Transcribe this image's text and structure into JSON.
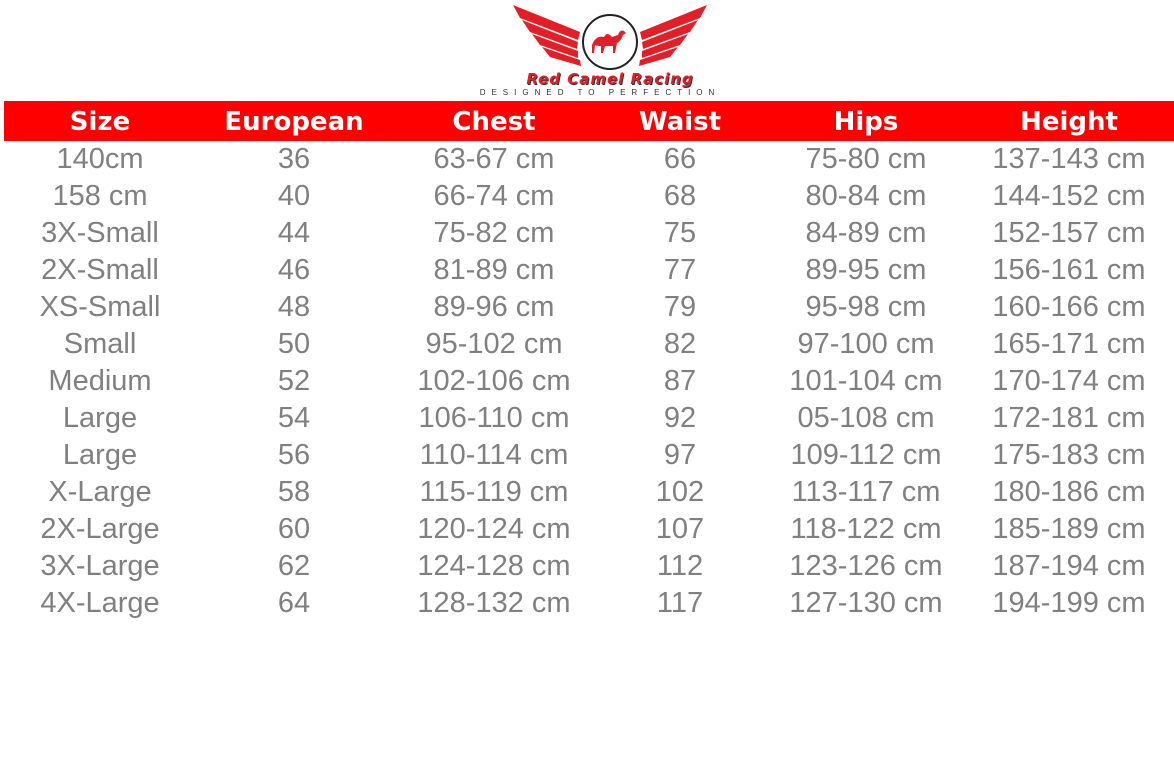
{
  "brand": {
    "name": "Red Camel Racing",
    "tagline": "Designed to Perfection",
    "colors": {
      "accent": "#ff0000",
      "logo_red": "#e41e26",
      "text_gray": "#808080"
    }
  },
  "table": {
    "headers": [
      "Size",
      "European",
      "Chest",
      "Waist",
      "Hips",
      "Height"
    ],
    "rows": [
      [
        "140cm",
        "36",
        "63-67 cm",
        "66",
        "75-80 cm",
        "137-143 cm"
      ],
      [
        "158 cm",
        "40",
        "66-74 cm",
        "68",
        "80-84 cm",
        "144-152 cm"
      ],
      [
        "3X-Small",
        "44",
        "75-82 cm",
        "75",
        "84-89 cm",
        "152-157 cm"
      ],
      [
        "2X-Small",
        "46",
        "81-89 cm",
        "77",
        "89-95 cm",
        "156-161 cm"
      ],
      [
        "XS-Small",
        "48",
        "89-96 cm",
        "79",
        "95-98 cm",
        "160-166 cm"
      ],
      [
        "Small",
        "50",
        "95-102 cm",
        "82",
        "97-100 cm",
        "165-171 cm"
      ],
      [
        "Medium",
        "52",
        "102-106 cm",
        "87",
        "101-104 cm",
        "170-174 cm"
      ],
      [
        "Large",
        "54",
        "106-110 cm",
        "92",
        "05-108 cm",
        "172-181 cm"
      ],
      [
        "Large",
        "56",
        "110-114 cm",
        "97",
        "109-112 cm",
        "175-183 cm"
      ],
      [
        "X-Large",
        "58",
        "115-119 cm",
        "102",
        "113-117 cm",
        "180-186 cm"
      ],
      [
        "2X-Large",
        "60",
        "120-124 cm",
        "107",
        "118-122 cm",
        "185-189 cm"
      ],
      [
        "3X-Large",
        "62",
        "124-128 cm",
        "112",
        "123-126 cm",
        "187-194 cm"
      ],
      [
        "4X-Large",
        "64",
        "128-132 cm",
        "117",
        "127-130 cm",
        "194-199 cm"
      ]
    ]
  }
}
